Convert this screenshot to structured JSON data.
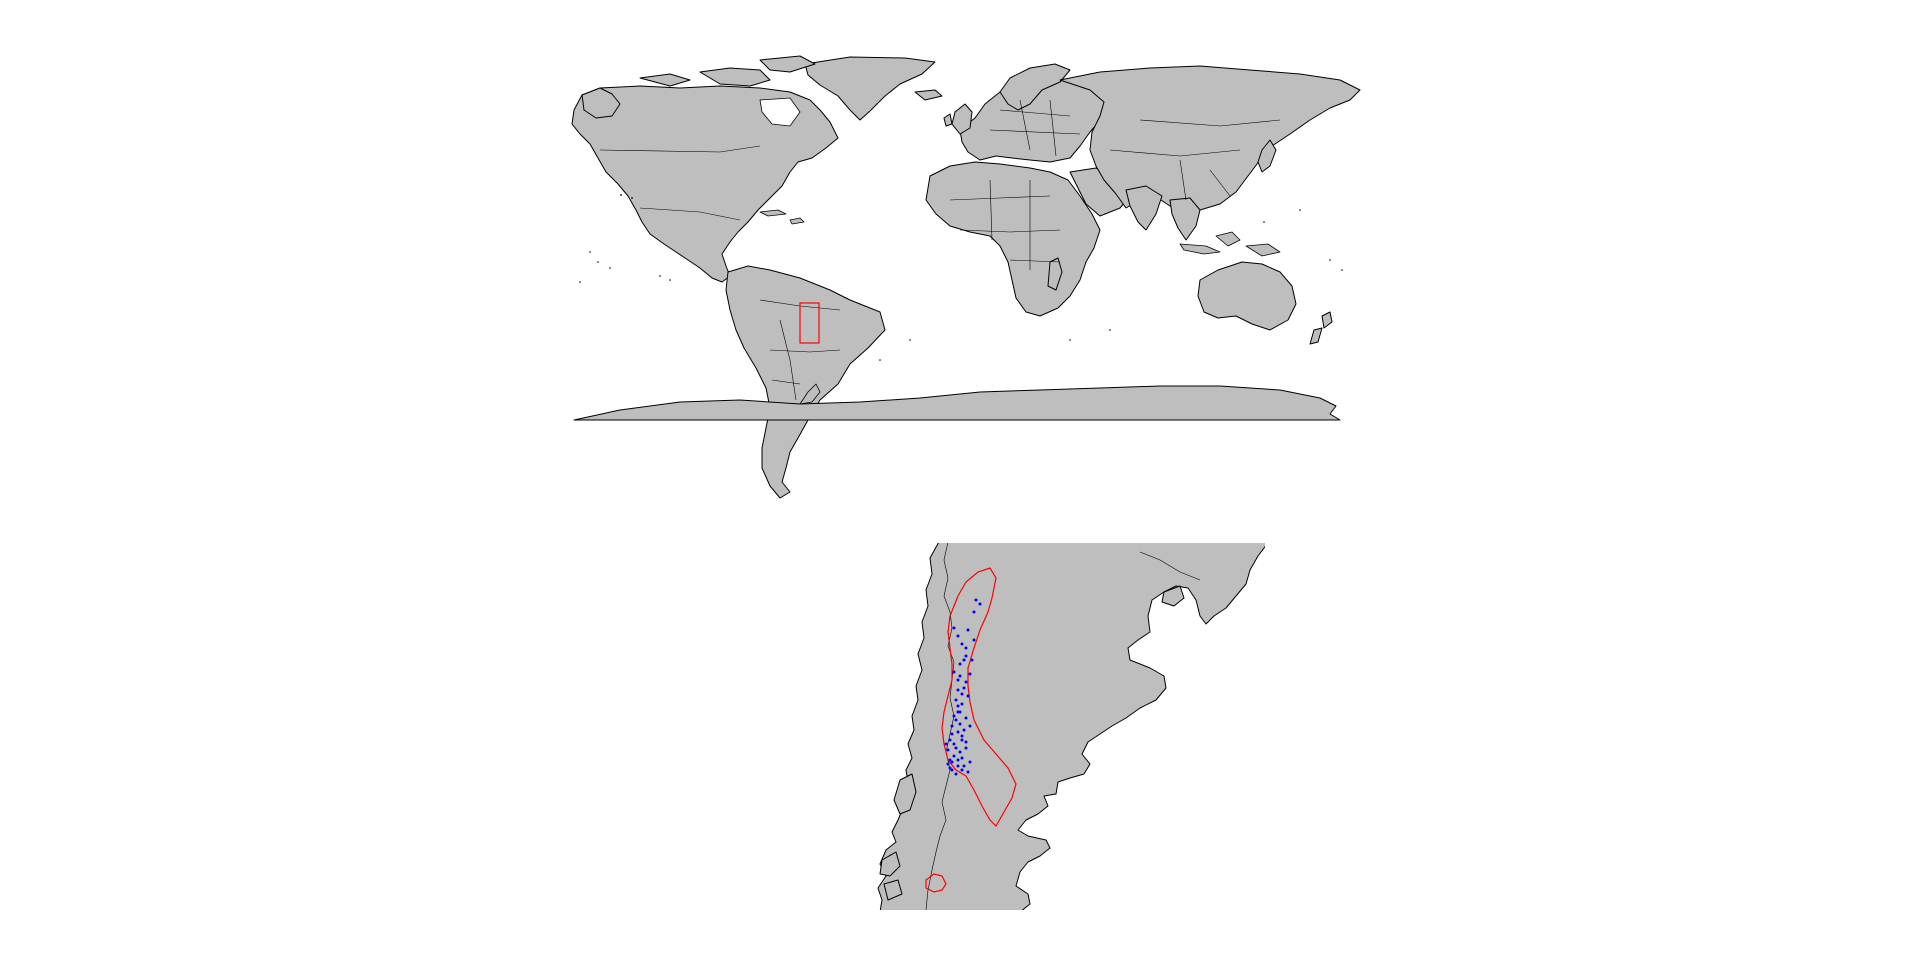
{
  "maps": {
    "world": {
      "land_color": "#bebebe",
      "border_color": "#000000",
      "extent_box_color": "#ff0000"
    },
    "detail": {
      "land_color": "#bebebe",
      "border_color": "#000000",
      "range_outline_color": "#ff0000",
      "occurrence_color": "#0000ff",
      "occurrence_count": 60
    }
  }
}
